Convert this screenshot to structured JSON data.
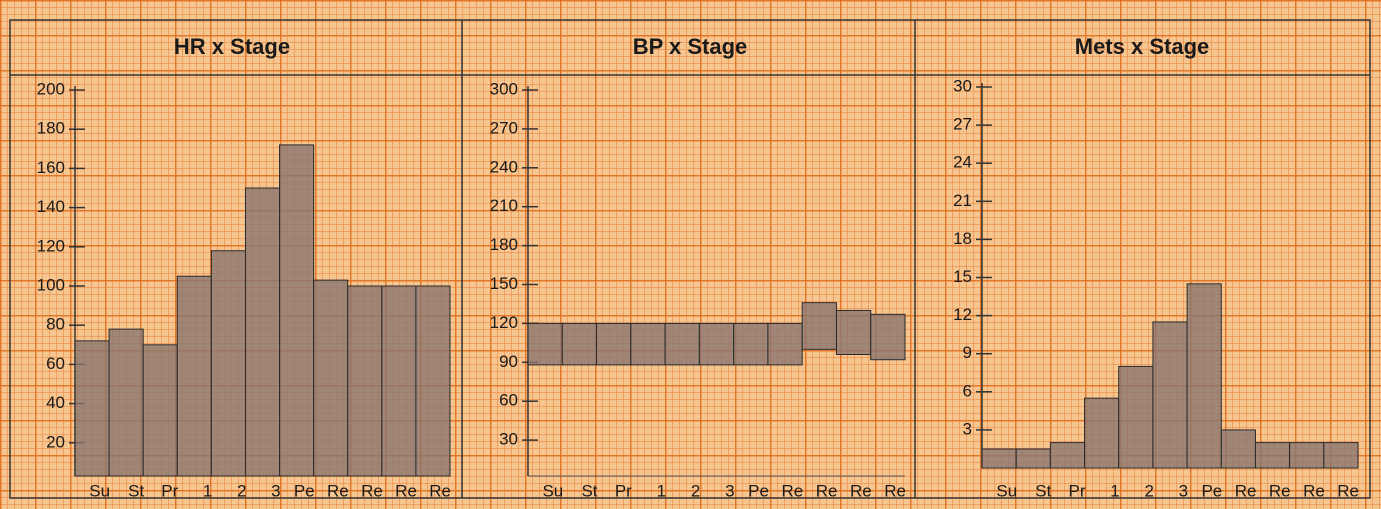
{
  "chart_data": [
    {
      "type": "bar",
      "title": "HR x Stage",
      "categories": [
        "Su",
        "St",
        "Pr",
        "1",
        "2",
        "3",
        "Pe",
        "Re",
        "Re",
        "Re",
        "Re"
      ],
      "values": [
        72,
        78,
        70,
        105,
        118,
        150,
        172,
        103,
        100,
        100,
        100
      ],
      "ylim": [
        0,
        200
      ],
      "yticks": [
        20,
        40,
        60,
        80,
        100,
        120,
        140,
        160,
        180,
        200
      ],
      "color": "#8a7570"
    },
    {
      "type": "floating-bar",
      "title": "BP x Stage",
      "categories": [
        "Su",
        "St",
        "Pr",
        "1",
        "2",
        "3",
        "Pe",
        "Re",
        "Re",
        "Re",
        "Re"
      ],
      "values": [
        [
          88,
          120
        ],
        [
          88,
          120
        ],
        [
          88,
          120
        ],
        [
          88,
          120
        ],
        [
          88,
          120
        ],
        [
          88,
          120
        ],
        [
          88,
          120
        ],
        [
          88,
          120
        ],
        [
          100,
          136
        ],
        [
          96,
          130
        ],
        [
          92,
          127
        ]
      ],
      "ylim": [
        0,
        300
      ],
      "yticks": [
        30,
        60,
        90,
        120,
        150,
        180,
        210,
        240,
        270,
        300
      ],
      "color": "#8a7570"
    },
    {
      "type": "bar",
      "title": "Mets x Stage",
      "categories": [
        "Su",
        "St",
        "Pr",
        "1",
        "2",
        "3",
        "Pe",
        "Re",
        "Re",
        "Re",
        "Re"
      ],
      "values": [
        1.5,
        1.5,
        2,
        5.5,
        8,
        11.5,
        14.5,
        3,
        2,
        2,
        2
      ],
      "ylim": [
        0,
        30
      ],
      "yticks": [
        3,
        6,
        9,
        12,
        15,
        18,
        21,
        24,
        27,
        30
      ],
      "color": "#8a7570"
    }
  ]
}
